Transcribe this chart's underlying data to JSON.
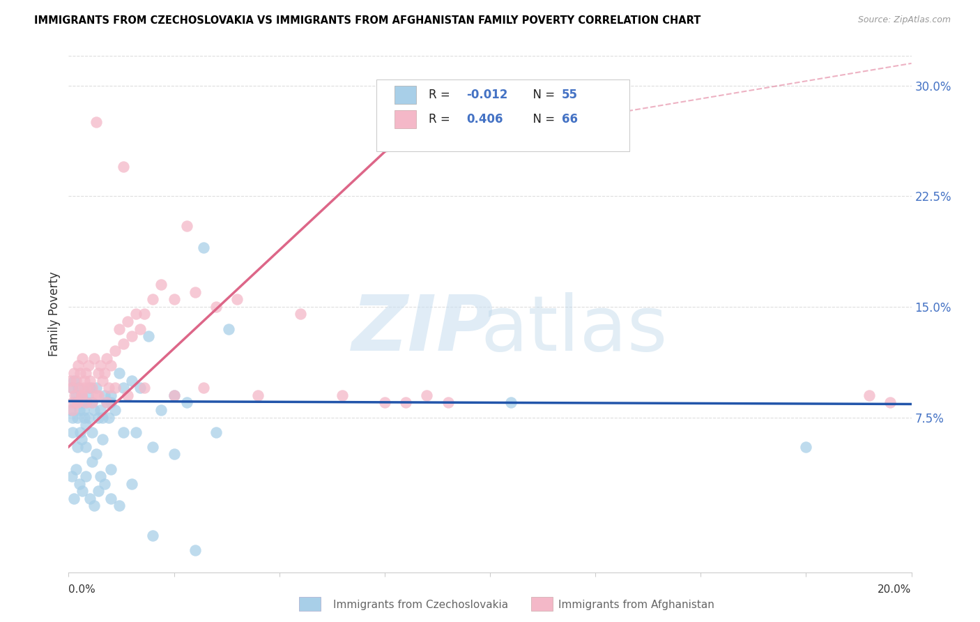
{
  "title": "IMMIGRANTS FROM CZECHOSLOVAKIA VS IMMIGRANTS FROM AFGHANISTAN FAMILY POVERTY CORRELATION CHART",
  "source": "Source: ZipAtlas.com",
  "ylabel": "Family Poverty",
  "ytick_values": [
    7.5,
    15.0,
    22.5,
    30.0
  ],
  "xlim": [
    0.0,
    20.0
  ],
  "ylim": [
    -3.0,
    32.0
  ],
  "color_blue": "#a8cfe8",
  "color_pink": "#f4b8c8",
  "color_blue_line": "#2255aa",
  "color_pink_line": "#dd6688",
  "color_dashed": "#cccccc",
  "blue_scatter_x": [
    0.05,
    0.07,
    0.1,
    0.12,
    0.15,
    0.18,
    0.2,
    0.22,
    0.25,
    0.28,
    0.3,
    0.32,
    0.35,
    0.38,
    0.4,
    0.42,
    0.45,
    0.48,
    0.5,
    0.55,
    0.6,
    0.65,
    0.7,
    0.75,
    0.8,
    0.85,
    0.9,
    0.95,
    1.0,
    1.1,
    1.2,
    1.3,
    1.5,
    1.7,
    1.9,
    2.2,
    2.5,
    2.8,
    3.2,
    3.8,
    0.1,
    0.2,
    0.3,
    0.4,
    0.55,
    0.65,
    0.8,
    1.0,
    1.3,
    1.6,
    2.0,
    2.5,
    3.5,
    10.5,
    17.5
  ],
  "blue_scatter_y": [
    8.0,
    9.5,
    7.5,
    10.0,
    8.5,
    9.0,
    7.5,
    9.5,
    8.0,
    6.5,
    9.0,
    8.5,
    8.0,
    7.5,
    7.0,
    8.5,
    9.0,
    7.5,
    9.5,
    8.5,
    8.0,
    9.5,
    7.5,
    8.0,
    7.5,
    9.0,
    8.5,
    7.5,
    9.0,
    8.0,
    10.5,
    9.5,
    10.0,
    9.5,
    13.0,
    8.0,
    9.0,
    8.5,
    19.0,
    13.5,
    6.5,
    5.5,
    6.0,
    5.5,
    6.5,
    5.0,
    6.0,
    8.5,
    6.5,
    6.5,
    5.5,
    5.0,
    6.5,
    8.5,
    5.5
  ],
  "blue_scatter_below_x": [
    0.08,
    0.13,
    0.18,
    0.25,
    0.32,
    0.4,
    0.5,
    0.6,
    0.7,
    0.85,
    1.0,
    1.2,
    1.5,
    2.0,
    3.0,
    0.55,
    0.75,
    1.0
  ],
  "blue_scatter_below_y": [
    3.5,
    2.0,
    4.0,
    3.0,
    2.5,
    3.5,
    2.0,
    1.5,
    2.5,
    3.0,
    2.0,
    1.5,
    3.0,
    -0.5,
    -1.5,
    4.5,
    3.5,
    4.0
  ],
  "pink_scatter_x": [
    0.05,
    0.08,
    0.1,
    0.12,
    0.15,
    0.18,
    0.2,
    0.22,
    0.25,
    0.28,
    0.3,
    0.32,
    0.35,
    0.38,
    0.4,
    0.45,
    0.48,
    0.5,
    0.55,
    0.6,
    0.65,
    0.7,
    0.75,
    0.8,
    0.85,
    0.9,
    0.95,
    1.0,
    1.1,
    1.2,
    1.3,
    1.4,
    1.5,
    1.6,
    1.7,
    1.8,
    2.0,
    2.2,
    2.5,
    3.0,
    3.5,
    4.0,
    0.1,
    0.2,
    0.3,
    0.4,
    0.55,
    0.7,
    0.9,
    1.1,
    1.4,
    1.8,
    2.5,
    3.2,
    4.5,
    8.0,
    8.5,
    1.3,
    0.65,
    2.8,
    5.5,
    6.5,
    7.5,
    9.0,
    19.0,
    19.5
  ],
  "pink_scatter_y": [
    10.0,
    9.5,
    8.5,
    10.5,
    9.0,
    10.0,
    8.5,
    11.0,
    9.5,
    10.5,
    9.0,
    11.5,
    9.5,
    10.0,
    10.5,
    9.5,
    11.0,
    10.0,
    9.5,
    11.5,
    9.0,
    10.5,
    11.0,
    10.0,
    10.5,
    11.5,
    9.5,
    11.0,
    12.0,
    13.5,
    12.5,
    14.0,
    13.0,
    14.5,
    13.5,
    14.5,
    15.5,
    16.5,
    15.5,
    16.0,
    15.0,
    15.5,
    8.0,
    8.5,
    9.0,
    8.5,
    8.5,
    9.0,
    8.5,
    9.5,
    9.0,
    9.5,
    9.0,
    9.5,
    9.0,
    8.5,
    9.0,
    24.5,
    27.5,
    20.5,
    14.5,
    9.0,
    8.5,
    8.5,
    9.0,
    8.5
  ],
  "blue_trend_x": [
    0.0,
    20.0
  ],
  "blue_trend_y": [
    8.6,
    8.4
  ],
  "pink_trend_x": [
    0.0,
    7.5
  ],
  "pink_trend_y": [
    5.5,
    25.5
  ],
  "dashed_trend_x": [
    7.5,
    20.0
  ],
  "dashed_trend_y": [
    25.5,
    31.5
  ]
}
